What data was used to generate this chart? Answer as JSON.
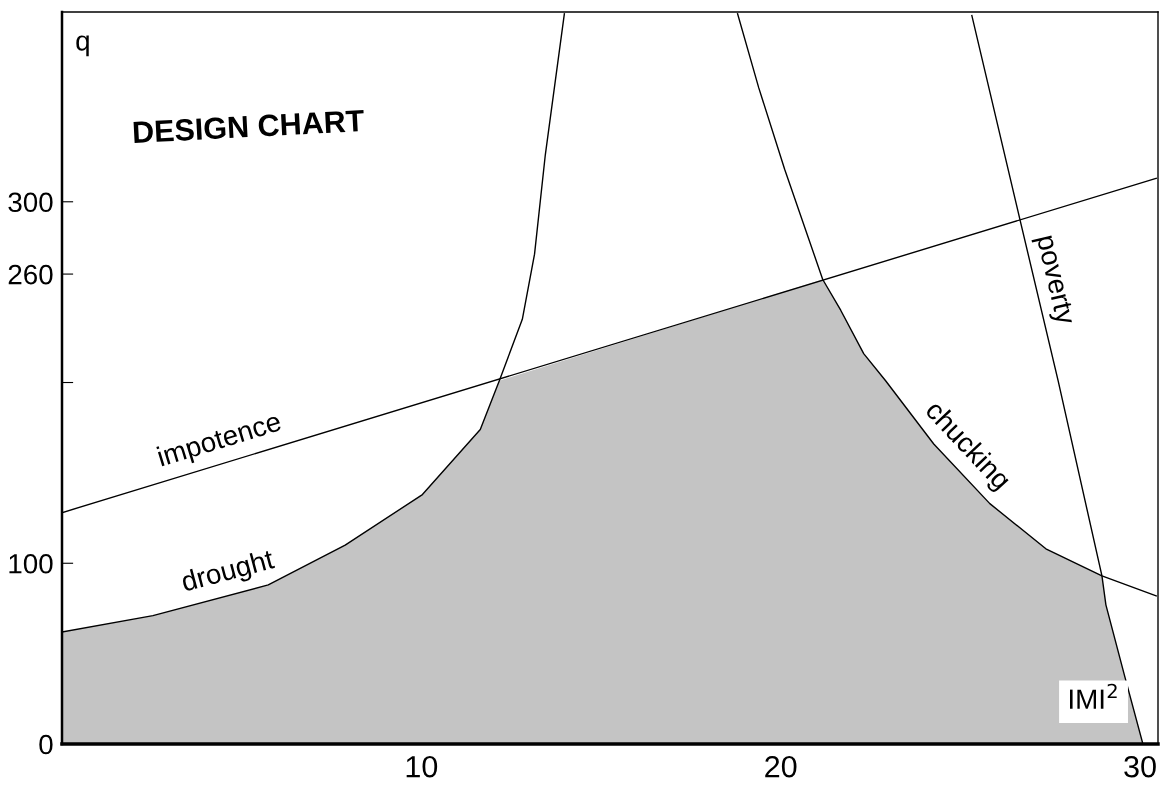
{
  "chart_data": {
    "type": "line",
    "title": "DESIGN CHART",
    "xlabel": "IMI$^{2}$",
    "ylabel": "q",
    "xlim": [
      0,
      30.5
    ],
    "ylim": [
      0,
      405
    ],
    "xticks": [
      10,
      20,
      30
    ],
    "yticks": [
      0,
      100,
      {
        "value": 200,
        "label": null
      },
      260,
      300
    ],
    "grid": false,
    "legend": false,
    "series": [
      {
        "type": "area",
        "color": "#c4c4c4",
        "x": [
          0,
          2.53,
          5.74,
          7.88,
          10.03,
          11.64,
          12.17,
          21.17,
          21.67,
          22.31,
          22.92,
          24.26,
          25.82,
          27.38,
          28.94,
          29.05,
          29.58,
          30.08
        ],
        "values": [
          62,
          71,
          88,
          110,
          138,
          174,
          201,
          257,
          240,
          216,
          201,
          166,
          133,
          108,
          93,
          77,
          37,
          0
        ]
      },
      {
        "name": "impotence",
        "color": "#000000",
        "x": [
          0,
          30.45
        ],
        "values": [
          128,
          313
        ]
      },
      {
        "name": "drought",
        "color": "#000000",
        "x": [
          0,
          2.53,
          5.74,
          7.88,
          10.03,
          11.64,
          12.17,
          12.81,
          13.15,
          13.45,
          13.98
        ],
        "values": [
          62,
          71,
          88,
          110,
          138,
          174,
          201,
          235,
          271,
          326,
          404
        ]
      },
      {
        "name": "chucking",
        "color": "#000000",
        "x": [
          18.8,
          19.39,
          20.11,
          21.17,
          21.67,
          22.31,
          22.92,
          24.26,
          25.82,
          27.38,
          28.94,
          30.45
        ],
        "values": [
          404,
          363,
          318,
          257,
          240,
          216,
          201,
          166,
          133,
          108,
          93,
          82
        ]
      },
      {
        "name": "poverty",
        "color": "#000000",
        "x": [
          25.32,
          26.66,
          27.72,
          28.94,
          29.05,
          29.58,
          30.08
        ],
        "values": [
          403,
          290,
          201,
          93,
          77,
          37,
          0
        ]
      }
    ]
  }
}
